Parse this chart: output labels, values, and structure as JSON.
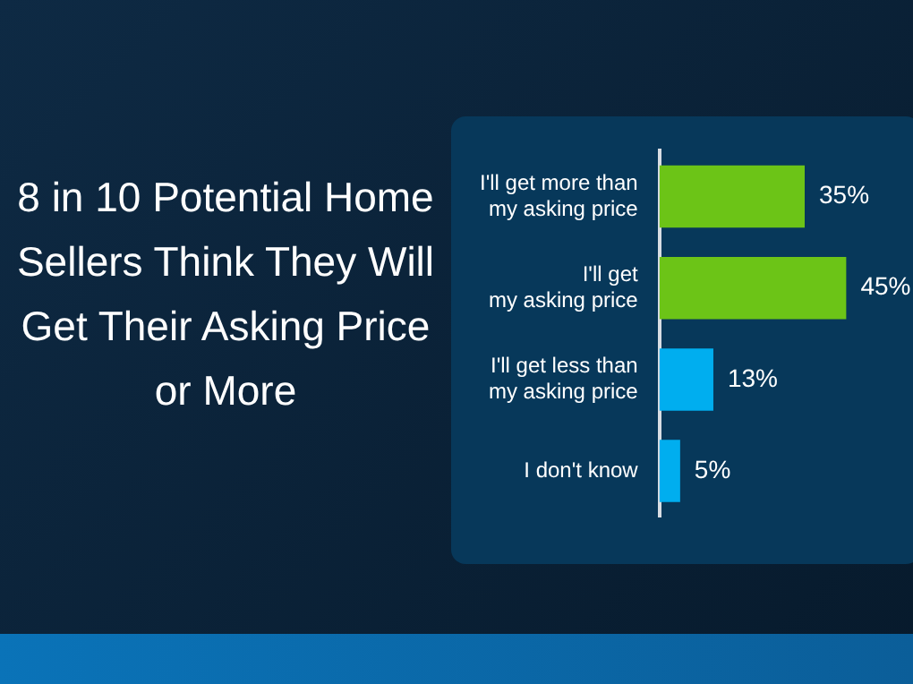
{
  "chart_data": {
    "type": "bar",
    "orientation": "horizontal",
    "title": "8 in 10 Potential Home Sellers Think They Will Get Their Asking Price or More",
    "categories": [
      "I'll get more than\nmy asking price",
      "I'll get\nmy asking price",
      "I'll get less than\nmy asking price",
      "I don't know"
    ],
    "values": [
      35,
      45,
      13,
      5
    ],
    "colors": [
      "#6cc417",
      "#6cc417",
      "#00aeef",
      "#00aeef"
    ],
    "value_labels": [
      "35%",
      "45%",
      "13%",
      "5%"
    ],
    "grid": false,
    "legend": false
  }
}
